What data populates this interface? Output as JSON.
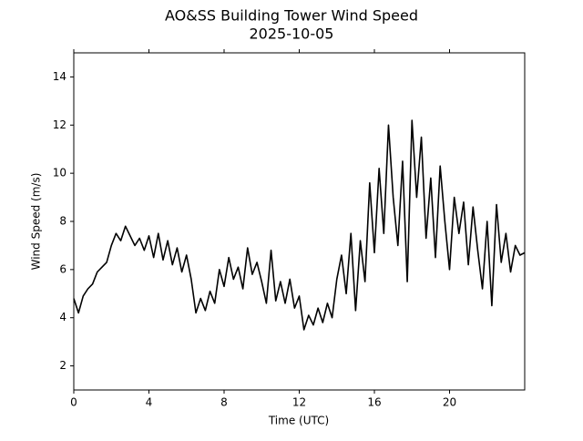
{
  "chart_data": {
    "type": "line",
    "title": "AO&SS Building Tower Wind Speed",
    "subtitle": "2025-10-05",
    "x_label": "Time (UTC)",
    "y_label": "Wind Speed (m/s)",
    "xlim": [
      0,
      24
    ],
    "ylim": [
      1,
      15
    ],
    "xticks": [
      0,
      4,
      8,
      12,
      16,
      20
    ],
    "yticks": [
      2,
      4,
      6,
      8,
      10,
      12,
      14
    ],
    "grid": false,
    "series": [
      {
        "color": "#000000",
        "x": [
          0,
          0.25,
          0.5,
          0.75,
          1,
          1.25,
          1.5,
          1.75,
          2,
          2.25,
          2.5,
          2.75,
          3,
          3.25,
          3.5,
          3.75,
          4,
          4.25,
          4.5,
          4.75,
          5,
          5.25,
          5.5,
          5.75,
          6,
          6.25,
          6.5,
          6.75,
          7,
          7.25,
          7.5,
          7.75,
          8,
          8.25,
          8.5,
          8.75,
          9,
          9.25,
          9.5,
          9.75,
          10,
          10.25,
          10.5,
          10.75,
          11,
          11.25,
          11.5,
          11.75,
          12,
          12.25,
          12.5,
          12.75,
          13,
          13.25,
          13.5,
          13.75,
          14,
          14.25,
          14.5,
          14.75,
          15,
          15.25,
          15.5,
          15.75,
          16,
          16.25,
          16.5,
          16.75,
          17,
          17.25,
          17.5,
          17.75,
          18,
          18.25,
          18.5,
          18.75,
          19,
          19.25,
          19.5,
          19.75,
          20,
          20.25,
          20.5,
          20.75,
          21,
          21.25,
          21.5,
          21.75,
          22,
          22.25,
          22.5,
          22.75,
          23,
          23.25,
          23.5,
          23.75,
          24
        ],
        "values": [
          4.8,
          4.2,
          4.9,
          5.2,
          5.4,
          5.9,
          6.1,
          6.3,
          7.0,
          7.5,
          7.2,
          7.8,
          7.4,
          7.0,
          7.3,
          6.8,
          7.4,
          6.5,
          7.5,
          6.4,
          7.2,
          6.2,
          6.9,
          5.9,
          6.6,
          5.6,
          4.2,
          4.8,
          4.3,
          5.1,
          4.6,
          6.0,
          5.3,
          6.5,
          5.6,
          6.1,
          5.2,
          6.9,
          5.8,
          6.3,
          5.5,
          4.6,
          6.8,
          4.7,
          5.5,
          4.6,
          5.6,
          4.4,
          4.9,
          3.5,
          4.1,
          3.7,
          4.4,
          3.8,
          4.6,
          4.0,
          5.6,
          6.6,
          5.0,
          7.5,
          4.3,
          7.2,
          5.5,
          9.6,
          6.7,
          10.2,
          7.5,
          12.0,
          9.0,
          7.0,
          10.5,
          5.5,
          12.2,
          9.0,
          11.5,
          7.3,
          9.8,
          6.5,
          10.3,
          8.0,
          6.0,
          9.0,
          7.5,
          8.8,
          6.2,
          8.6,
          6.8,
          5.2,
          8.0,
          4.5,
          8.7,
          6.3,
          7.5,
          5.9,
          7.0,
          6.6,
          6.7
        ]
      }
    ]
  }
}
